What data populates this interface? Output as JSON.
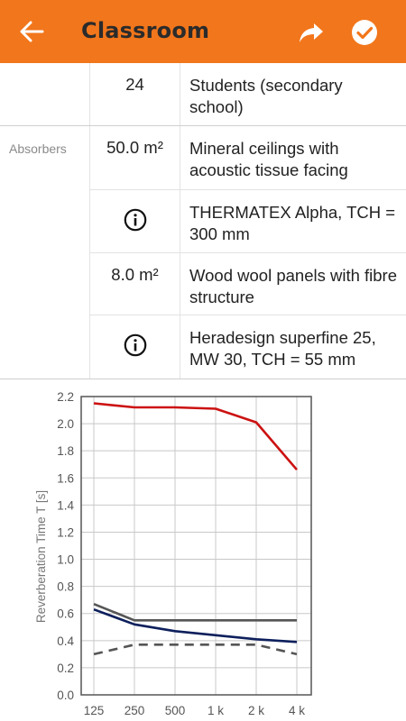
{
  "appbar": {
    "title": "Classroom",
    "back_icon": "arrow-left-icon",
    "share_icon": "share-icon",
    "done_icon": "check-circle-icon",
    "color": "#f2761b"
  },
  "table": {
    "rows": [
      {
        "label": "",
        "value": "24",
        "desc": "Students (secondary school)"
      },
      {
        "label": "Absorbers",
        "value": "50.0 m²",
        "desc": "Mineral ceilings with acoustic tissue facing"
      },
      {
        "label": "",
        "value": "",
        "icon": "info-icon",
        "desc": "THERMATEX Alpha, TCH = 300 mm"
      },
      {
        "label": "",
        "value": "8.0 m²",
        "desc": "Wood wool panels with fibre structure"
      },
      {
        "label": "",
        "value": "",
        "icon": "info-icon",
        "desc": "Heradesign superfine 25, MW 30, TCH = 55 mm"
      }
    ]
  },
  "chart_data": {
    "type": "line",
    "title": "",
    "xlabel": "",
    "ylabel": "Reverberation Time T   [s]",
    "categories": [
      "125",
      "250",
      "500",
      "1 k",
      "2 k",
      "4 k"
    ],
    "ylim": [
      0.0,
      2.2
    ],
    "yticks": [
      "0.0",
      "0.2",
      "0.4",
      "0.6",
      "0.8",
      "1.0",
      "1.2",
      "1.4",
      "1.6",
      "1.8",
      "2.0",
      "2.2"
    ],
    "grid": true,
    "series": [
      {
        "values": [
          2.15,
          2.12,
          2.12,
          2.11,
          2.01,
          1.66
        ],
        "color": "#cc1111",
        "dash": false
      },
      {
        "values": [
          0.67,
          0.55,
          0.55,
          0.55,
          0.55,
          0.55
        ],
        "color": "#555555",
        "dash": false
      },
      {
        "values": [
          0.63,
          0.52,
          0.47,
          0.44,
          0.41,
          0.39
        ],
        "color": "#0d1f5c",
        "dash": false
      },
      {
        "values": [
          0.3,
          0.37,
          0.37,
          0.37,
          0.37,
          0.3
        ],
        "color": "#555555",
        "dash": true
      }
    ]
  }
}
